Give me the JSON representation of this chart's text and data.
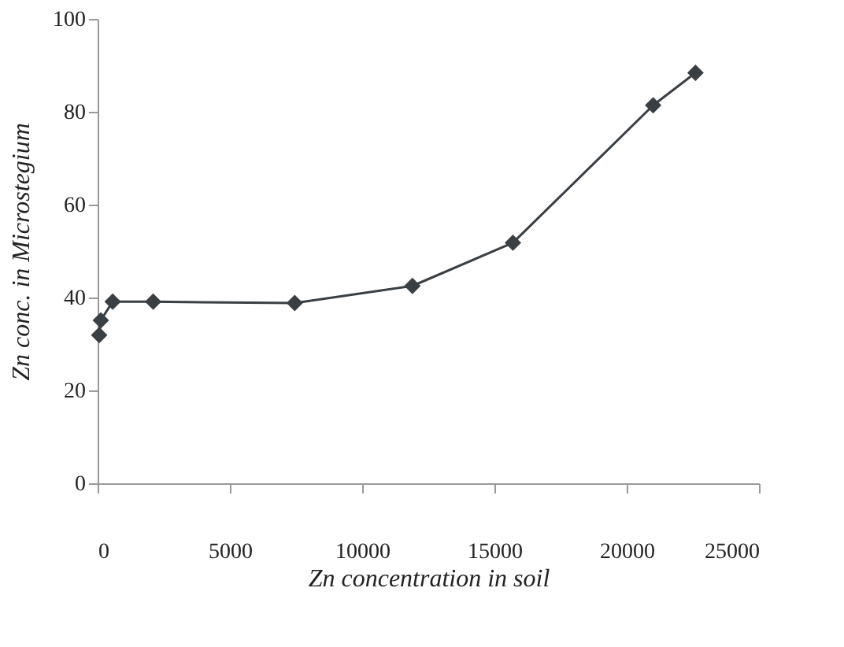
{
  "chart_data": {
    "type": "line",
    "xlabel": "Zn concentration in soil",
    "ylabel": "Zn conc. in Microstegium",
    "x": [
      60,
      120,
      570,
      2100,
      7450,
      11900,
      15700,
      21000,
      22600
    ],
    "series": [
      {
        "color": "#3a3f44",
        "values": [
          31.9,
          35.1,
          39.1,
          39.1,
          38.8,
          42.5,
          51.8,
          81.4,
          88.4
        ]
      }
    ],
    "xlim": [
      0,
      25000
    ],
    "xticks": [
      0,
      5000,
      10000,
      15000,
      20000,
      25000
    ],
    "ylim": [
      0,
      100
    ],
    "yticks": [
      0,
      20,
      40,
      60,
      80,
      100
    ],
    "grid": false,
    "marker": "diamond",
    "line_style": "solid"
  }
}
